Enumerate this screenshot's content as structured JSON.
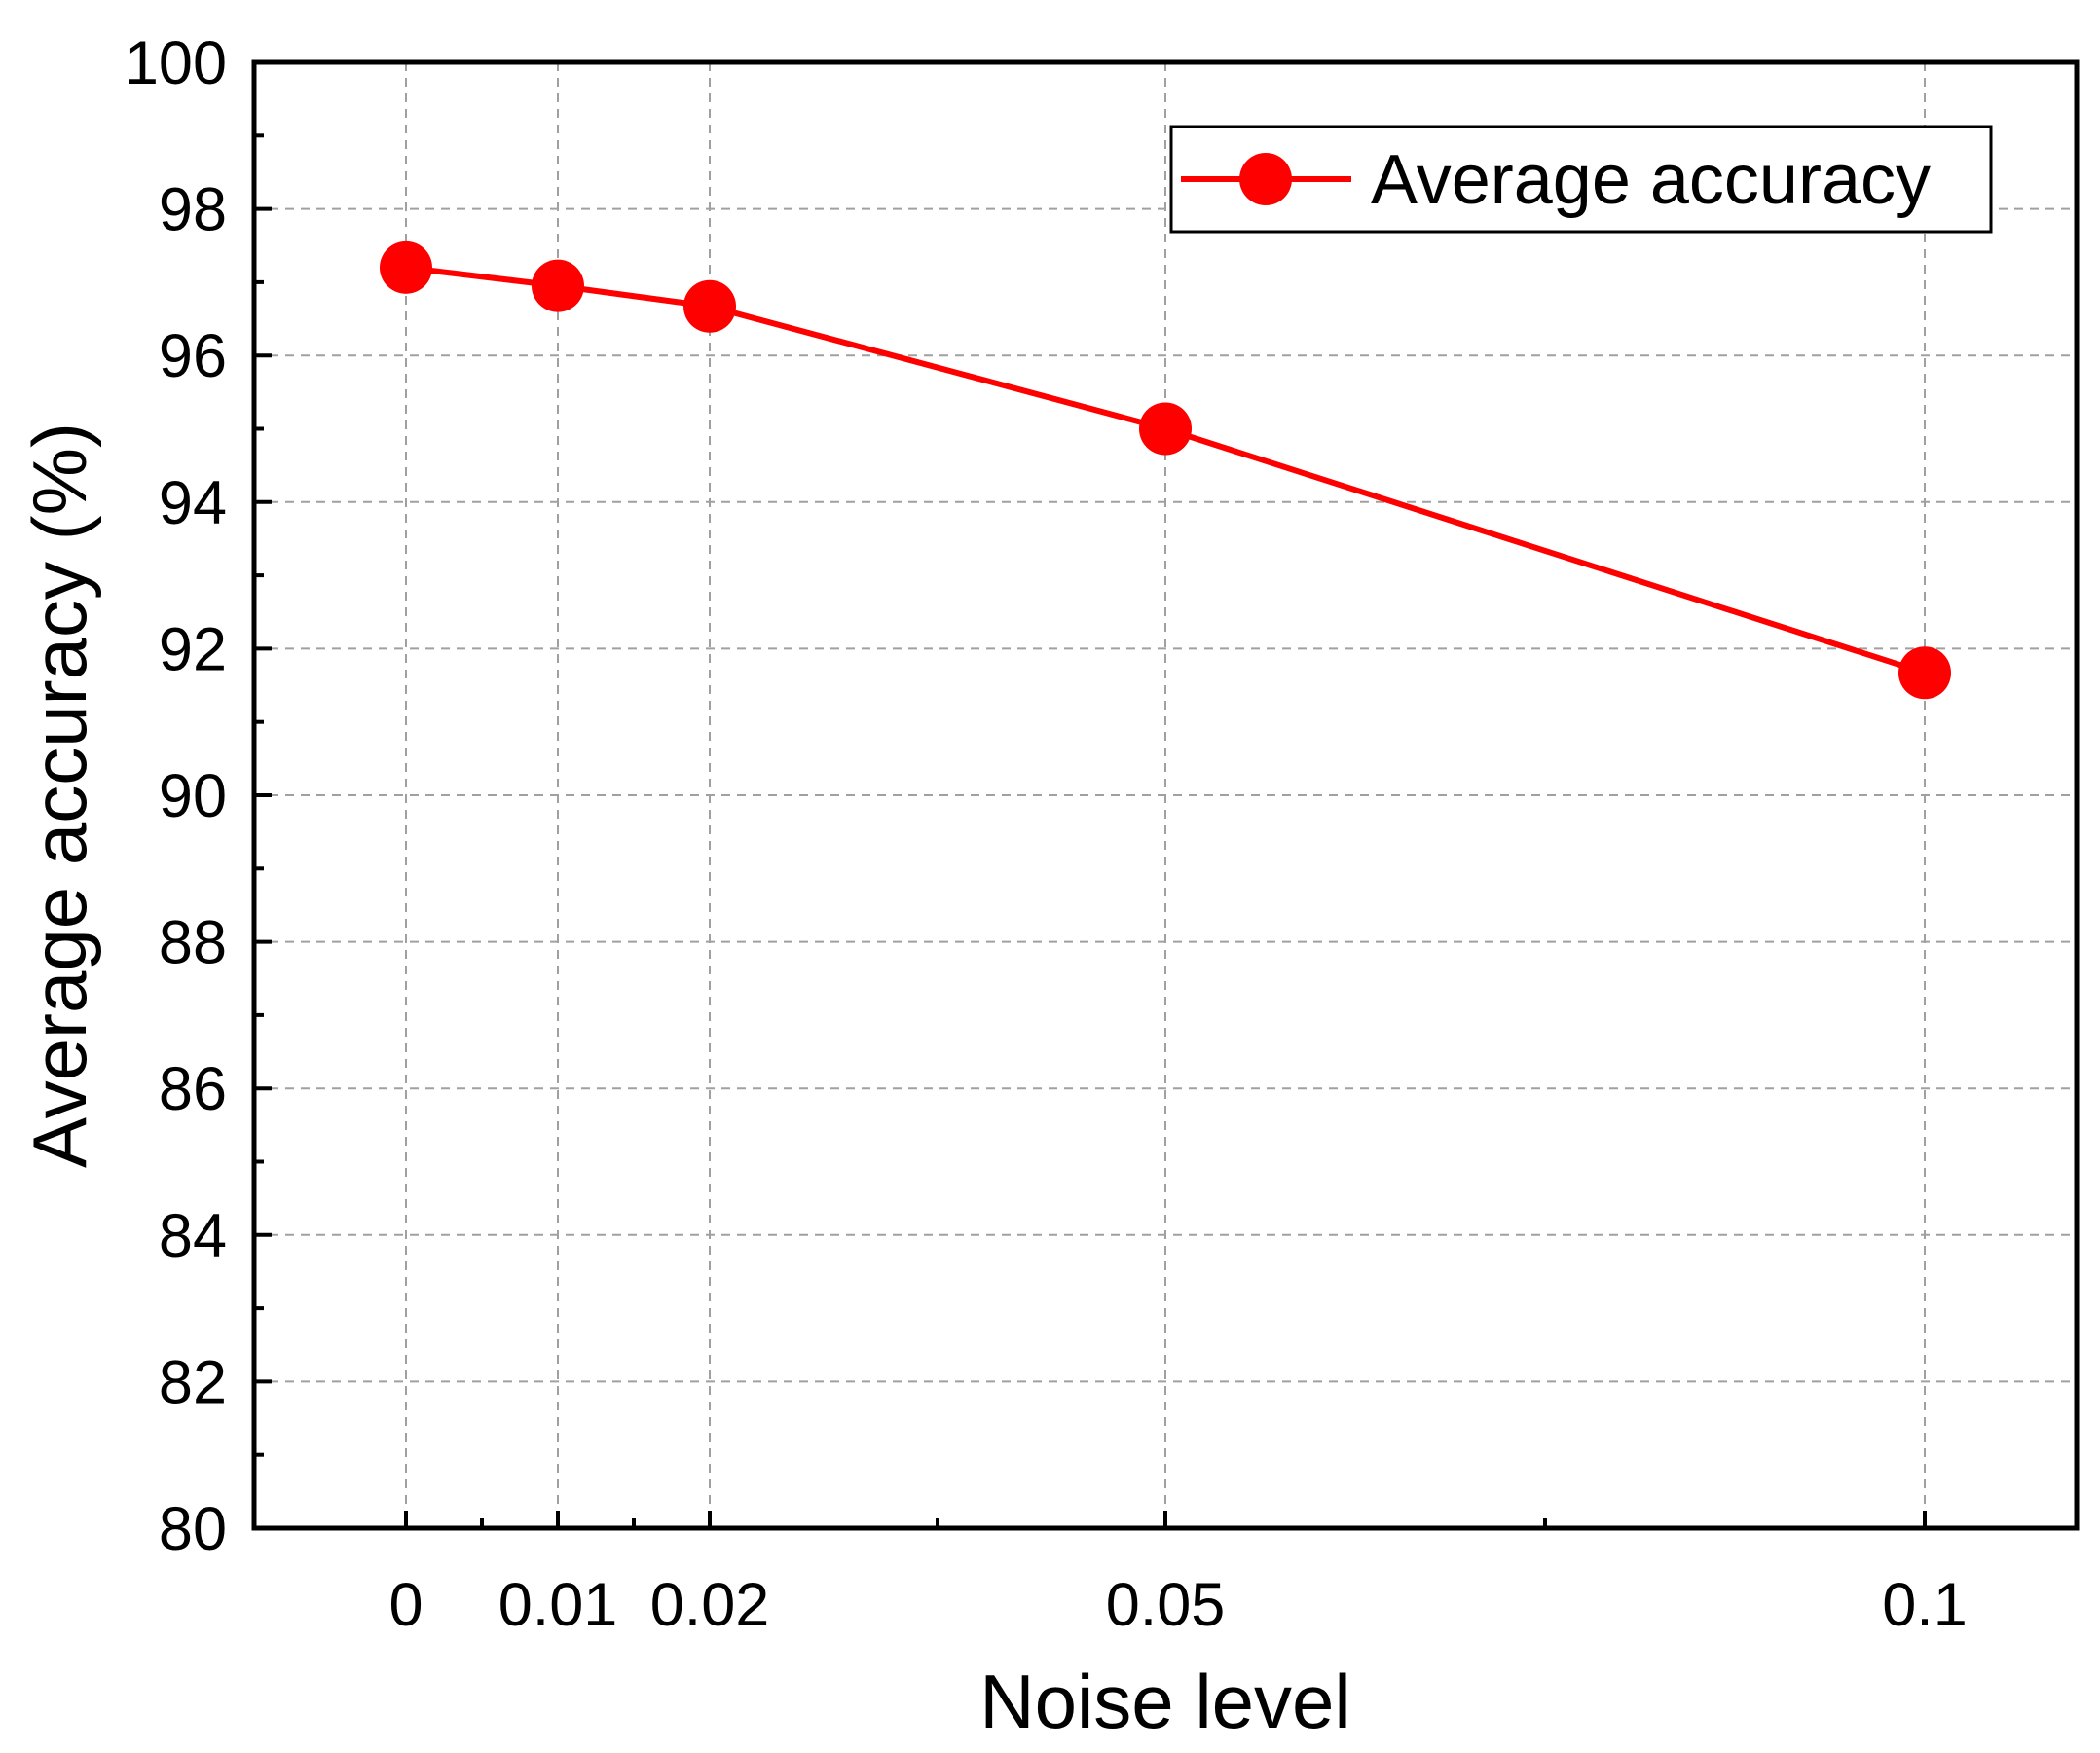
{
  "chart_data": {
    "type": "line",
    "title": "",
    "xlabel": "Noise level",
    "ylabel": "Average accuracy (%)",
    "x": [
      0,
      0.01,
      0.02,
      0.05,
      0.1
    ],
    "x_tick_labels": [
      "0",
      "0.01",
      "0.02",
      "0.05",
      "0.1"
    ],
    "y_tick_labels": [
      "80",
      "82",
      "84",
      "86",
      "88",
      "90",
      "92",
      "94",
      "96",
      "98",
      "100"
    ],
    "ylim": [
      80,
      100
    ],
    "xlim": [
      -0.01,
      0.11
    ],
    "grid": true,
    "legend_position": "top-right",
    "series": [
      {
        "name": "Average accuracy",
        "color": "#ff0000",
        "marker": "circle",
        "values": [
          97.2,
          96.95,
          96.67,
          95.0,
          91.67
        ]
      }
    ]
  }
}
